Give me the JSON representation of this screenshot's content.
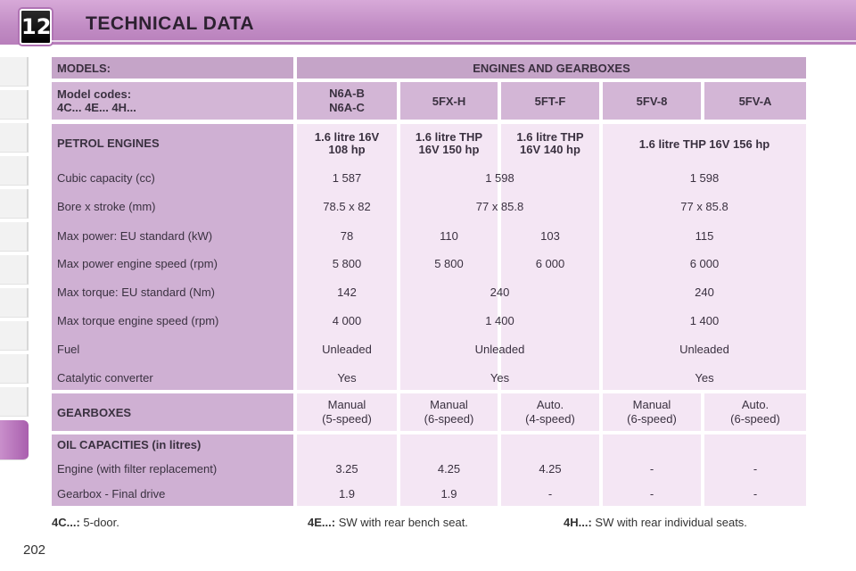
{
  "header": {
    "chapter_number": "12",
    "title": "TECHNICAL DATA"
  },
  "table": {
    "models_label": "MODELS:",
    "engines_gearboxes_label": "ENGINES AND GEARBOXES",
    "model_codes_label_1": "Model codes:",
    "model_codes_label_2": "4C... 4E... 4H...",
    "codes": [
      "N6A-B\nN6A-C",
      "5FX-H",
      "5FT-F",
      "5FV-8",
      "5FV-A"
    ],
    "petrol_engines_label": "PETROL ENGINES",
    "engines": [
      "1.6 litre 16V\n108 hp",
      "1.6 litre THP\n16V 150 hp",
      "1.6 litre THP\n16V 140 hp",
      "1.6 litre THP 16V 156 hp"
    ],
    "rows": [
      {
        "label": "Cubic capacity (cc)",
        "c1": "1 587",
        "c23": "1 598",
        "c45": "1 598"
      },
      {
        "label": "Bore x stroke (mm)",
        "c1": "78.5 x 82",
        "c23": "77 x 85.8",
        "c45": "77 x 85.8"
      },
      {
        "label": "Max power: EU standard (kW)",
        "c1": "78",
        "c2": "110",
        "c3": "103",
        "c45": "115"
      },
      {
        "label": "Max power engine speed (rpm)",
        "c1": "5 800",
        "c2": "5 800",
        "c3": "6 000",
        "c45": "6 000"
      },
      {
        "label": "Max torque: EU standard (Nm)",
        "c1": "142",
        "c23": "240",
        "c45": "240"
      },
      {
        "label": "Max torque engine speed (rpm)",
        "c1": "4 000",
        "c23": "1 400",
        "c45": "1 400"
      },
      {
        "label": "Fuel",
        "c1": "Unleaded",
        "c23": "Unleaded",
        "c45": "Unleaded"
      },
      {
        "label": "Catalytic converter",
        "c1": "Yes",
        "c23": "Yes",
        "c45": "Yes"
      }
    ],
    "gearboxes_label": "GEARBOXES",
    "gearboxes": [
      "Manual\n(5-speed)",
      "Manual\n(6-speed)",
      "Auto.\n(4-speed)",
      "Manual\n(6-speed)",
      "Auto.\n(6-speed)"
    ],
    "oil_label": "OIL CAPACITIES (in litres)",
    "engine_oil_label": "Engine (with filter replacement)",
    "engine_oil": [
      "3.25",
      "4.25",
      "4.25",
      "-",
      "-"
    ],
    "gearbox_oil_label": "Gearbox - Final drive",
    "gearbox_oil": [
      "1.9",
      "1.9",
      "-",
      "-",
      "-"
    ]
  },
  "footnotes": {
    "n1_code": "4C...:",
    "n1_text": " 5-door.",
    "n2_code": "4E...:",
    "n2_text": " SW with rear bench seat.",
    "n3_code": "4H...:",
    "n3_text": " SW with rear individual seats."
  },
  "page_number": "202"
}
